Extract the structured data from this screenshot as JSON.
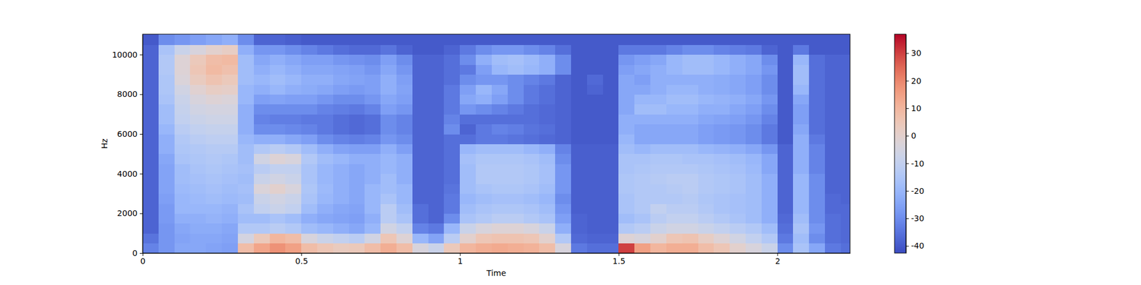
{
  "chart_data": {
    "type": "heatmap",
    "x_label": "Time",
    "y_label": "Hz",
    "xlim": [
      0,
      2.229
    ],
    "xticks": [
      0,
      0.5,
      1,
      1.5,
      2
    ],
    "ylim": [
      0,
      11025
    ],
    "yticks": [
      0,
      2000,
      4000,
      6000,
      8000,
      10000
    ],
    "x_edges": [
      0,
      0.05,
      0.1,
      0.15,
      0.2,
      0.25,
      0.3,
      0.35,
      0.4,
      0.45,
      0.5,
      0.55,
      0.6,
      0.65,
      0.7,
      0.75,
      0.8,
      0.85,
      0.9,
      0.95,
      1,
      1.05,
      1.1,
      1.15,
      1.2,
      1.25,
      1.3,
      1.35,
      1.4,
      1.45,
      1.5,
      1.55,
      1.6,
      1.65,
      1.7,
      1.75,
      1.8,
      1.85,
      1.9,
      1.95,
      2,
      2.05,
      2.1,
      2.15,
      2.2,
      2.25
    ],
    "y_edges": [
      0,
      500,
      1000,
      1500,
      2000,
      2500,
      3000,
      3500,
      4000,
      4500,
      5000,
      5500,
      6000,
      6500,
      7000,
      7500,
      8000,
      8500,
      9000,
      9500,
      10000,
      10500,
      11025
    ],
    "values": [
      [
        -32,
        -35,
        -38,
        -38,
        -38,
        -38,
        -38,
        -38,
        -38,
        -38,
        -38,
        -38,
        -38,
        -38,
        -38,
        -38,
        -38,
        -38,
        -38,
        -38,
        -38,
        -40
      ],
      [
        -28,
        -28,
        -28,
        -27,
        -27,
        -26,
        -25,
        -25,
        -25,
        -24,
        -22,
        -22,
        -20,
        -18,
        -18,
        -16,
        -15,
        -15,
        -14,
        -14,
        -16,
        -30
      ],
      [
        -24,
        -25,
        -24,
        -22,
        -20,
        -20,
        -19,
        -18,
        -18,
        -16,
        -15,
        -14,
        -12,
        -10,
        -9,
        -8,
        -6,
        -3,
        -2,
        -2,
        -8,
        -28
      ],
      [
        -24,
        -24,
        -23,
        -22,
        -20,
        -19,
        -18,
        -17,
        -16,
        -15,
        -14,
        -12,
        -10,
        -8,
        -6,
        -4,
        -1,
        3,
        5,
        4,
        -4,
        -26
      ],
      [
        -25,
        -24,
        -23,
        -21,
        -20,
        -18,
        -17,
        -16,
        -15,
        -14,
        -13,
        -11,
        -9,
        -7,
        -5,
        -2,
        2,
        6,
        9,
        8,
        0,
        -24
      ],
      [
        -26,
        -25,
        -24,
        -22,
        -21,
        -19,
        -18,
        -17,
        -16,
        -15,
        -13,
        -11,
        -9,
        -7,
        -5,
        -3,
        1,
        4,
        7,
        9,
        2,
        -22
      ],
      [
        8,
        -5,
        -14,
        -18,
        -16,
        -18,
        -17,
        -18,
        -17,
        -18,
        -18,
        -20,
        -22,
        -22,
        -22,
        -20,
        -20,
        -18,
        -18,
        -18,
        -22,
        -30
      ],
      [
        14,
        4,
        -14,
        -18,
        -10,
        -8,
        -3,
        -8,
        -12,
        -6,
        -14,
        -22,
        -30,
        -32,
        -30,
        -26,
        -22,
        -20,
        -22,
        -24,
        -28,
        -38
      ],
      [
        18,
        10,
        -12,
        -16,
        -8,
        -6,
        0,
        -6,
        -10,
        -2,
        -12,
        -22,
        -30,
        -33,
        -30,
        -25,
        -20,
        -18,
        -20,
        -22,
        -28,
        -38
      ],
      [
        15,
        8,
        -14,
        -18,
        -10,
        -8,
        -4,
        -8,
        -10,
        -4,
        -14,
        -24,
        -31,
        -33,
        -30,
        -26,
        -22,
        -20,
        -22,
        -24,
        -30,
        -39
      ],
      [
        8,
        -4,
        -18,
        -22,
        -18,
        -16,
        -15,
        -16,
        -16,
        -14,
        -18,
        -26,
        -32,
        -34,
        -30,
        -26,
        -23,
        -22,
        -24,
        -26,
        -32,
        -40
      ],
      [
        5,
        -8,
        -20,
        -24,
        -22,
        -20,
        -19,
        -20,
        -20,
        -18,
        -22,
        -30,
        -34,
        -34,
        -32,
        -28,
        -24,
        -22,
        -24,
        -26,
        -34,
        -40
      ],
      [
        3,
        -10,
        -22,
        -25,
        -24,
        -22,
        -22,
        -22,
        -22,
        -20,
        -25,
        -32,
        -36,
        -36,
        -33,
        -30,
        -26,
        -24,
        -25,
        -28,
        -36,
        -40
      ],
      [
        4,
        -12,
        -24,
        -26,
        -25,
        -24,
        -24,
        -24,
        -24,
        -22,
        -26,
        -33,
        -37,
        -37,
        -34,
        -30,
        -27,
        -25,
        -26,
        -29,
        -37,
        -40
      ],
      [
        8,
        -6,
        -20,
        -22,
        -20,
        -20,
        -20,
        -22,
        -22,
        -22,
        -26,
        -32,
        -36,
        -36,
        -32,
        -28,
        -26,
        -26,
        -28,
        -30,
        -37,
        -40
      ],
      [
        12,
        5,
        -6,
        -12,
        -12,
        -16,
        -18,
        -18,
        -20,
        -20,
        -22,
        -28,
        -30,
        -30,
        -26,
        -24,
        -22,
        -22,
        -24,
        -26,
        -35,
        -40
      ],
      [
        8,
        -2,
        -10,
        -16,
        -18,
        -20,
        -20,
        -22,
        -22,
        -22,
        -26,
        -30,
        -32,
        -32,
        -28,
        -26,
        -25,
        -26,
        -28,
        -30,
        -38,
        -40
      ],
      [
        -4,
        -20,
        -32,
        -36,
        -36,
        -38,
        -38,
        -38,
        -38,
        -38,
        -38,
        -38,
        -38,
        -38,
        -38,
        -38,
        -38,
        -38,
        -38,
        -38,
        -40,
        -40
      ],
      [
        -8,
        -25,
        -34,
        -38,
        -38,
        -38,
        -38,
        -38,
        -38,
        -38,
        -38,
        -38,
        -38,
        -38,
        -38,
        -38,
        -38,
        -38,
        -38,
        -38,
        -40,
        -40
      ],
      [
        4,
        -12,
        -20,
        -30,
        -34,
        -34,
        -35,
        -36,
        -36,
        -36,
        -36,
        -36,
        -30,
        -32,
        -34,
        -34,
        -34,
        -36,
        -36,
        -36,
        -38,
        -40
      ],
      [
        10,
        0,
        -8,
        -16,
        -18,
        -20,
        -18,
        -18,
        -18,
        -17,
        -20,
        -36,
        -38,
        -36,
        -28,
        -24,
        -26,
        -30,
        -34,
        -30,
        -34,
        -40
      ],
      [
        12,
        5,
        -4,
        -14,
        -16,
        -18,
        -16,
        -14,
        -14,
        -15,
        -18,
        -34,
        -34,
        -36,
        -30,
        -22,
        -20,
        -28,
        -26,
        -22,
        -30,
        -40
      ],
      [
        13,
        6,
        -2,
        -12,
        -15,
        -17,
        -15,
        -14,
        -14,
        -15,
        -18,
        -34,
        -32,
        -36,
        -32,
        -26,
        -24,
        -28,
        -20,
        -18,
        -28,
        -40
      ],
      [
        12,
        6,
        -2,
        -12,
        -15,
        -17,
        -15,
        -14,
        -14,
        -15,
        -18,
        -35,
        -33,
        -36,
        -34,
        -30,
        -30,
        -30,
        -18,
        -17,
        -28,
        -40
      ],
      [
        11,
        5,
        -4,
        -14,
        -16,
        -18,
        -16,
        -15,
        -15,
        -16,
        -20,
        -36,
        -35,
        -36,
        -36,
        -34,
        -34,
        -32,
        -20,
        -19,
        -30,
        -40
      ],
      [
        8,
        0,
        -8,
        -16,
        -18,
        -20,
        -18,
        -17,
        -17,
        -18,
        -22,
        -37,
        -36,
        -37,
        -37,
        -36,
        -36,
        -34,
        -22,
        -22,
        -32,
        -40
      ],
      [
        -4,
        -14,
        -22,
        -26,
        -28,
        -30,
        -28,
        -28,
        -28,
        -30,
        -32,
        -38,
        -38,
        -38,
        -38,
        -38,
        -38,
        -38,
        -30,
        -30,
        -36,
        -40
      ],
      [
        -34,
        -37,
        -38,
        -38,
        -39,
        -39,
        -39,
        -39,
        -39,
        -39,
        -39,
        -40,
        -40,
        -40,
        -40,
        -40,
        -40,
        -40,
        -40,
        -40,
        -40,
        -40
      ],
      [
        -36,
        -38,
        -39,
        -39,
        -39,
        -39,
        -39,
        -39,
        -39,
        -39,
        -39,
        -40,
        -40,
        -40,
        -40,
        -40,
        -38,
        -37,
        -40,
        -40,
        -40,
        -40
      ],
      [
        -36,
        -38,
        -39,
        -39,
        -39,
        -39,
        -39,
        -39,
        -39,
        -39,
        -39,
        -40,
        -40,
        -40,
        -40,
        -40,
        -40,
        -40,
        -40,
        -40,
        -40,
        -40
      ],
      [
        30,
        -2,
        -14,
        -18,
        -16,
        -16,
        -15,
        -15,
        -16,
        -16,
        -18,
        -20,
        -22,
        -22,
        -24,
        -24,
        -24,
        -24,
        -26,
        -28,
        -34,
        -40
      ],
      [
        15,
        -4,
        -12,
        -16,
        -14,
        -14,
        -14,
        -14,
        -15,
        -16,
        -20,
        -24,
        -24,
        -22,
        -18,
        -20,
        -24,
        -26,
        -24,
        -26,
        -34,
        -40
      ],
      [
        10,
        0,
        -8,
        -12,
        -10,
        -14,
        -14,
        -13,
        -14,
        -15,
        -18,
        -24,
        -24,
        -22,
        -18,
        -20,
        -22,
        -22,
        -22,
        -24,
        -34,
        -40
      ],
      [
        12,
        5,
        -6,
        -10,
        -12,
        -14,
        -13,
        -12,
        -14,
        -15,
        -18,
        -24,
        -24,
        -22,
        -20,
        -18,
        -20,
        -22,
        -20,
        -20,
        -32,
        -40
      ],
      [
        12,
        6,
        -6,
        -10,
        -12,
        -13,
        -12,
        -12,
        -14,
        -16,
        -18,
        -24,
        -24,
        -22,
        -20,
        -18,
        -20,
        -22,
        -18,
        -18,
        -30,
        -40
      ],
      [
        8,
        2,
        -8,
        -12,
        -14,
        -15,
        -14,
        -14,
        -15,
        -16,
        -20,
        -26,
        -26,
        -24,
        -22,
        -20,
        -22,
        -22,
        -18,
        -18,
        -30,
        -40
      ],
      [
        5,
        -2,
        -10,
        -14,
        -16,
        -16,
        -15,
        -15,
        -16,
        -17,
        -21,
        -27,
        -27,
        -25,
        -22,
        -21,
        -23,
        -23,
        -20,
        -20,
        -32,
        -40
      ],
      [
        0,
        -6,
        -12,
        -16,
        -17,
        -17,
        -16,
        -16,
        -17,
        -18,
        -22,
        -28,
        -28,
        -26,
        -24,
        -22,
        -24,
        -24,
        -22,
        -22,
        -33,
        -40
      ],
      [
        -4,
        -10,
        -14,
        -18,
        -18,
        -18,
        -18,
        -18,
        -19,
        -20,
        -24,
        -30,
        -30,
        -28,
        -26,
        -24,
        -26,
        -26,
        -24,
        -24,
        -34,
        -40
      ],
      [
        -8,
        -14,
        -18,
        -22,
        -22,
        -22,
        -22,
        -22,
        -24,
        -24,
        -28,
        -34,
        -34,
        -32,
        -30,
        -28,
        -30,
        -30,
        -28,
        -30,
        -38,
        -40
      ],
      [
        -30,
        -34,
        -36,
        -37,
        -38,
        -38,
        -38,
        -38,
        -38,
        -38,
        -38,
        -40,
        -40,
        -40,
        -40,
        -40,
        -40,
        -40,
        -40,
        -40,
        -40,
        -40
      ],
      [
        -16,
        -18,
        -16,
        -18,
        -20,
        -20,
        -20,
        -20,
        -22,
        -22,
        -22,
        -22,
        -24,
        -26,
        -26,
        -24,
        -20,
        -18,
        -18,
        -20,
        -34,
        -40
      ],
      [
        -24,
        -30,
        -28,
        -30,
        -30,
        -30,
        -30,
        -30,
        -32,
        -32,
        -32,
        -34,
        -36,
        -36,
        -36,
        -36,
        -36,
        -36,
        -36,
        -36,
        -40,
        -40
      ],
      [
        -34,
        -36,
        -36,
        -36,
        -37,
        -37,
        -38,
        -38,
        -38,
        -38,
        -38,
        -38,
        -38,
        -38,
        -38,
        -38,
        -38,
        -38,
        -38,
        -38,
        -40,
        -40
      ],
      [
        -36,
        -37,
        -37,
        -37,
        -37,
        -38,
        -38,
        -38,
        -38,
        -38,
        -38,
        -38,
        -38,
        -38,
        -38,
        -38,
        -38,
        -38,
        -38,
        -38,
        -40,
        -40
      ]
    ],
    "colorbar_lim": [
      -42.6,
      36.9
    ],
    "colorbar_ticks": [
      -40,
      -30,
      -20,
      -10,
      0,
      10,
      20,
      30
    ]
  }
}
